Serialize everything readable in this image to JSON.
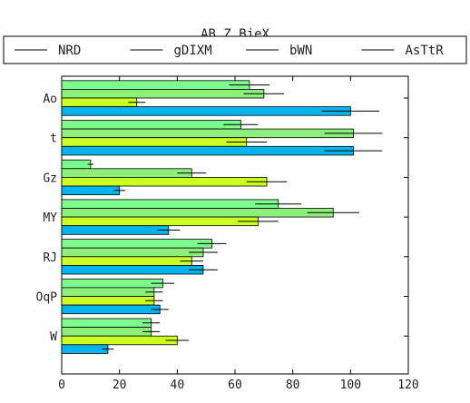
{
  "chart_data": {
    "type": "bar",
    "orientation": "horizontal",
    "title": "AB Z BjeX",
    "xlabel": "",
    "ylabel": "",
    "xlim": [
      0,
      120
    ],
    "xticks": [
      0,
      20,
      40,
      60,
      80,
      100,
      120
    ],
    "grid": false,
    "legend": "top",
    "categories": [
      "Ao",
      "t",
      "Gz",
      "MY",
      "RJ",
      "OqP",
      "W"
    ],
    "series": [
      {
        "name": "NRD",
        "color": "#7cfc8c",
        "values": [
          65,
          62,
          10,
          75,
          52,
          35,
          31
        ],
        "errors": [
          7,
          6,
          1,
          8,
          5,
          4,
          3
        ]
      },
      {
        "name": "gDIXM",
        "color": "#8cf07a",
        "values": [
          70,
          101,
          45,
          94,
          49,
          32,
          31
        ],
        "errors": [
          7,
          10,
          5,
          9,
          5,
          3,
          3
        ]
      },
      {
        "name": "bWN",
        "color": "#ccff22",
        "values": [
          26,
          64,
          71,
          68,
          45,
          32,
          40
        ],
        "errors": [
          3,
          7,
          7,
          7,
          4,
          3,
          4
        ]
      },
      {
        "name": "AsTtR",
        "color": "#00b4f0",
        "values": [
          100,
          101,
          20,
          37,
          49,
          34,
          16
        ],
        "errors": [
          10,
          10,
          2,
          4,
          5,
          3,
          2
        ]
      }
    ]
  }
}
